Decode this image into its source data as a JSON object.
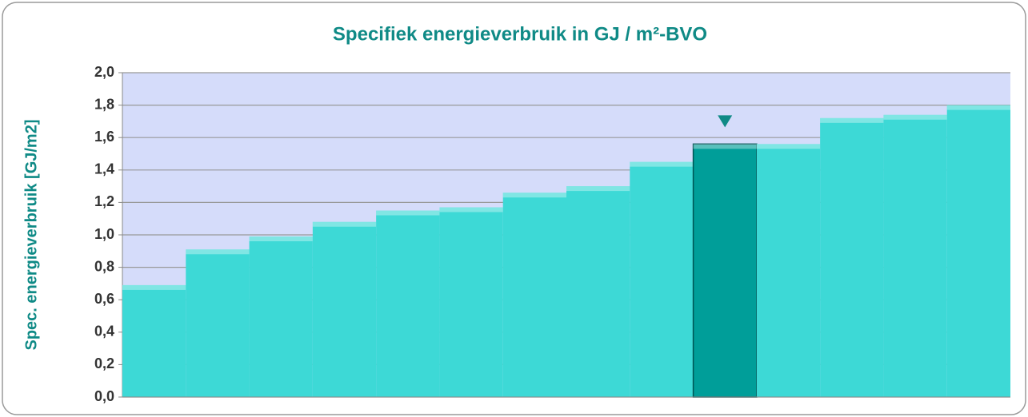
{
  "chart_data": {
    "type": "bar",
    "title": "Specifiek energieverbruik in GJ / m²-BVO",
    "y_label": "Spec. energieverbruik [GJ/m2]",
    "categories": [
      null,
      null,
      null,
      null,
      null,
      null,
      null,
      null,
      null,
      null,
      null,
      null,
      null,
      null
    ],
    "values": [
      0.69,
      0.91,
      0.99,
      1.08,
      1.15,
      1.17,
      1.26,
      1.3,
      1.45,
      1.56,
      1.56,
      1.72,
      1.74,
      1.8
    ],
    "color": "#3dd9d6",
    "colors": [
      "#3dd9d6",
      "#3dd9d6",
      "#3dd9d6",
      "#3dd9d6",
      "#3dd9d6",
      "#3dd9d6",
      "#3dd9d6",
      "#3dd9d6",
      "#3dd9d6",
      "#009e99",
      "#3dd9d6",
      "#3dd9d6",
      "#3dd9d6",
      "#3dd9d6"
    ],
    "ylim": [
      0,
      2
    ],
    "yticks": [
      {
        "value": 0,
        "label": "0,0"
      },
      {
        "value": 0.2,
        "label": "0,2"
      },
      {
        "value": 0.4,
        "label": "0,4"
      },
      {
        "value": 0.6,
        "label": "0,6"
      },
      {
        "value": 0.8,
        "label": "0,8"
      },
      {
        "value": 1.0,
        "label": "1,0"
      },
      {
        "value": 1.2,
        "label": "1,2"
      },
      {
        "value": 1.4,
        "label": "1,4"
      },
      {
        "value": 1.6,
        "label": "1,6"
      },
      {
        "value": 1.8,
        "label": "1,8"
      },
      {
        "value": 2.0,
        "label": "2,0"
      }
    ],
    "grid": true
  }
}
